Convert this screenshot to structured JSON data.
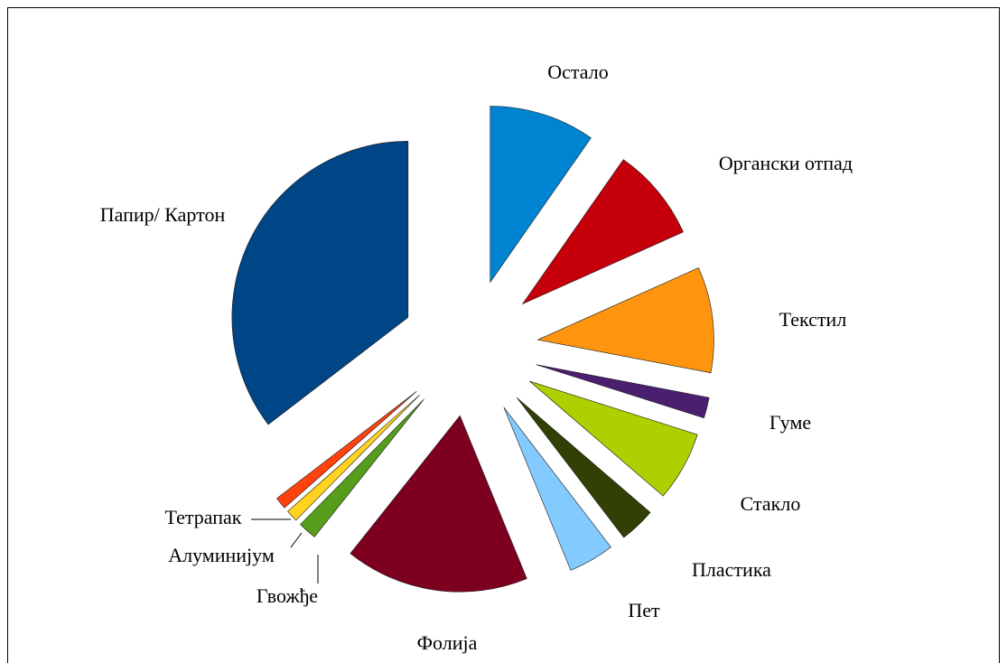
{
  "chart_data": {
    "type": "pie",
    "categories": [
      "Остало",
      "Органски отпад",
      "Текстил",
      "Гуме",
      "Стакло",
      "Пластика",
      "Пет",
      "Фолија",
      "Гвожђе",
      "Алуминијум",
      "Тетрапак",
      "Папир/ Картон"
    ],
    "values": [
      9.7,
      8.6,
      9.7,
      1.9,
      6.4,
      3.3,
      4.2,
      16.9,
      1.7,
      1.1,
      1.1,
      35.4
    ],
    "colors": [
      "#0084d1",
      "#c5000b",
      "#ff950e",
      "#4b1f6f",
      "#aecf00",
      "#314004",
      "#83caff",
      "#7e0021",
      "#579d1c",
      "#ffd320",
      "#ff420e",
      "#004586"
    ]
  }
}
